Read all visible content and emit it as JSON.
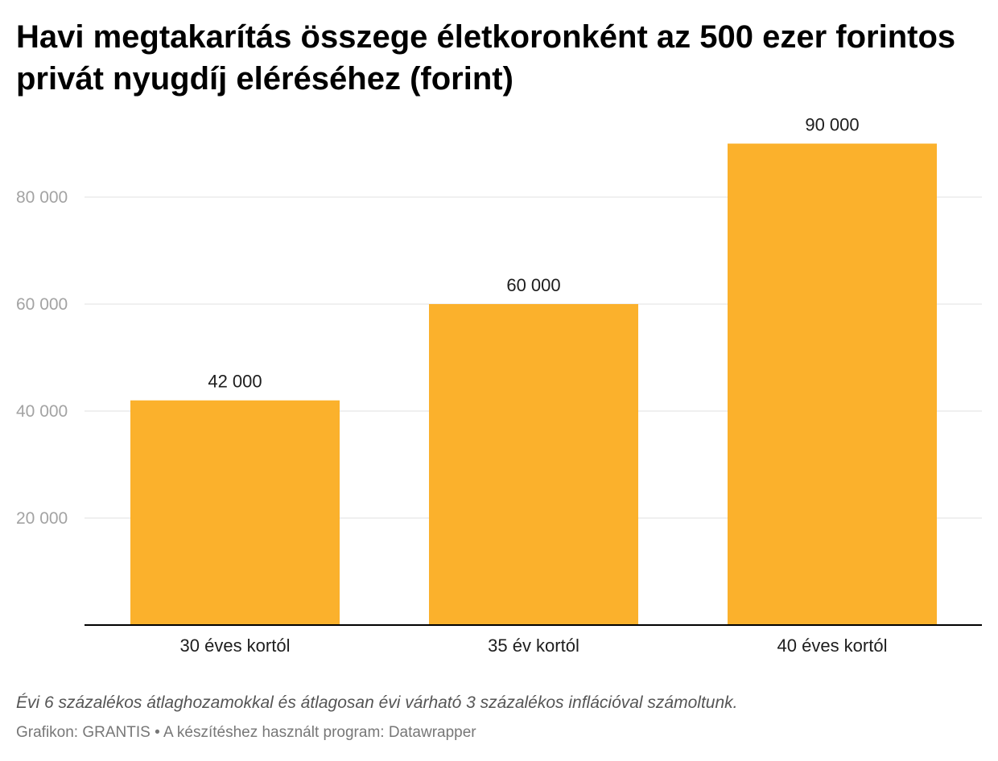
{
  "title": "Havi megtakarítás összege életkoronként az 500 ezer forintos privát nyugdíj eléréséhez (forint)",
  "note": "Évi 6 százalékos átlaghozamokkal és átlagosan évi várható 3 százalékos inflációval számoltunk.",
  "source": "Grafikon: GRANTIS • A készítéshez használt program: Datawrapper",
  "colors": {
    "bar": "#fbb12c",
    "grid": "#e0e0e0",
    "axis": "#000000",
    "tick_label": "#a3a3a3",
    "value_label": "#1d1d1d"
  },
  "chart_data": {
    "type": "bar",
    "categories": [
      "30 éves kortól",
      "35 év kortól",
      "40 éves kortól"
    ],
    "values": [
      42000,
      60000,
      90000
    ],
    "value_labels": [
      "42 000",
      "60 000",
      "90 000"
    ],
    "ylim": [
      0,
      100000
    ],
    "yticks": [
      20000,
      40000,
      60000,
      80000
    ],
    "ytick_labels": [
      "20 000",
      "40 000",
      "60 000",
      "80 000"
    ],
    "grid": true,
    "legend": "none"
  }
}
